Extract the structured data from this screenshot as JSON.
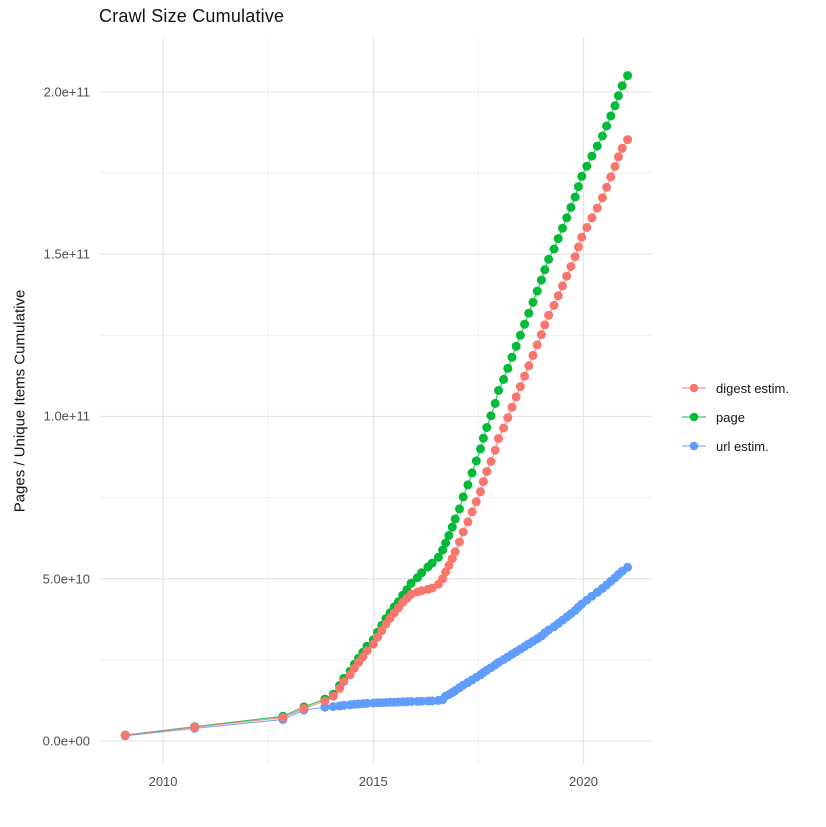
{
  "chart_data": {
    "type": "line",
    "title": "Crawl Size Cumulative",
    "xlabel": "",
    "ylabel": "Pages / Unique Items Cumulative",
    "value_unit": "1e9",
    "x_domain": [
      2008.5,
      2021.63
    ],
    "y_domain": [
      -7.1,
      216.6
    ],
    "grid": true,
    "legend_position": "right",
    "grid_major_color": "#e4e4e4",
    "grid_minor_color": "#efefef",
    "x_ticks": [
      {
        "value": 2010,
        "label": "2010"
      },
      {
        "value": 2015,
        "label": "2015"
      },
      {
        "value": 2020,
        "label": "2020"
      }
    ],
    "x_minor_ticks": [
      2012.5,
      2017.5
    ],
    "y_ticks": [
      {
        "value": 0,
        "label": "0.0e+00"
      },
      {
        "value": 50,
        "label": "5.0e+10"
      },
      {
        "value": 100,
        "label": "1.0e+11"
      },
      {
        "value": 150,
        "label": "1.5e+11"
      },
      {
        "value": 200,
        "label": "2.0e+11"
      }
    ],
    "y_minor_ticks": [
      25,
      75,
      125,
      175
    ],
    "series": [
      {
        "name": "digest estim.",
        "color": "#F8766D",
        "points": [
          [
            2009.1,
            1.7
          ],
          [
            2010.75,
            4.3
          ],
          [
            2012.85,
            7.2
          ],
          [
            2013.35,
            10.0
          ],
          [
            2013.85,
            12.3
          ],
          [
            2014.05,
            13.8
          ],
          [
            2014.2,
            16.2
          ],
          [
            2014.3,
            18.3
          ],
          [
            2014.45,
            20.4
          ],
          [
            2014.55,
            22.4
          ],
          [
            2014.65,
            24.2
          ],
          [
            2014.75,
            25.9
          ],
          [
            2014.85,
            27.8
          ],
          [
            2015.0,
            29.8
          ],
          [
            2015.1,
            32.0
          ],
          [
            2015.2,
            34.0
          ],
          [
            2015.3,
            36.0
          ],
          [
            2015.4,
            37.8
          ],
          [
            2015.5,
            39.5
          ],
          [
            2015.6,
            41.0
          ],
          [
            2015.7,
            42.7
          ],
          [
            2015.8,
            44.0
          ],
          [
            2015.9,
            45.2
          ],
          [
            2016.05,
            45.9
          ],
          [
            2016.15,
            46.3
          ],
          [
            2016.3,
            46.7
          ],
          [
            2016.4,
            47.1
          ],
          [
            2016.55,
            48.3
          ],
          [
            2016.65,
            50.0
          ],
          [
            2016.72,
            52.1
          ],
          [
            2016.8,
            54.1
          ],
          [
            2016.88,
            56.2
          ],
          [
            2016.95,
            58.3
          ],
          [
            2017.05,
            61.3
          ],
          [
            2017.14,
            64.4
          ],
          [
            2017.25,
            67.5
          ],
          [
            2017.35,
            70.6
          ],
          [
            2017.45,
            73.7
          ],
          [
            2017.55,
            76.8
          ],
          [
            2017.62,
            79.9
          ],
          [
            2017.7,
            83.0
          ],
          [
            2017.8,
            86.1
          ],
          [
            2017.9,
            89.6
          ],
          [
            2017.98,
            93.2
          ],
          [
            2018.1,
            96.4
          ],
          [
            2018.2,
            99.6
          ],
          [
            2018.3,
            102.8
          ],
          [
            2018.4,
            106.0
          ],
          [
            2018.5,
            109.2
          ],
          [
            2018.6,
            112.4
          ],
          [
            2018.7,
            115.6
          ],
          [
            2018.8,
            118.8
          ],
          [
            2018.9,
            122.0
          ],
          [
            2019.0,
            125.2
          ],
          [
            2019.08,
            128.2
          ],
          [
            2019.17,
            131.2
          ],
          [
            2019.3,
            134.2
          ],
          [
            2019.4,
            137.2
          ],
          [
            2019.5,
            140.2
          ],
          [
            2019.6,
            143.2
          ],
          [
            2019.7,
            146.2
          ],
          [
            2019.8,
            149.2
          ],
          [
            2019.88,
            152.2
          ],
          [
            2019.96,
            155.2
          ],
          [
            2020.08,
            158.2
          ],
          [
            2020.2,
            161.2
          ],
          [
            2020.33,
            164.2
          ],
          [
            2020.45,
            167.4
          ],
          [
            2020.55,
            170.6
          ],
          [
            2020.65,
            173.8
          ],
          [
            2020.75,
            177.0
          ],
          [
            2020.83,
            180.0
          ],
          [
            2020.92,
            182.6
          ],
          [
            2021.05,
            185.3
          ]
        ]
      },
      {
        "name": "page",
        "color": "#00BA38",
        "points": [
          [
            2009.1,
            1.8
          ],
          [
            2010.75,
            4.4
          ],
          [
            2012.85,
            7.6
          ],
          [
            2013.35,
            10.5
          ],
          [
            2013.85,
            12.9
          ],
          [
            2014.05,
            14.4
          ],
          [
            2014.2,
            17.1
          ],
          [
            2014.3,
            19.3
          ],
          [
            2014.45,
            21.5
          ],
          [
            2014.55,
            23.6
          ],
          [
            2014.65,
            25.5
          ],
          [
            2014.75,
            27.3
          ],
          [
            2014.85,
            29.2
          ],
          [
            2015.0,
            31.2
          ],
          [
            2015.1,
            33.5
          ],
          [
            2015.2,
            35.6
          ],
          [
            2015.3,
            37.7
          ],
          [
            2015.4,
            39.5
          ],
          [
            2015.5,
            41.3
          ],
          [
            2015.6,
            42.9
          ],
          [
            2015.7,
            44.9
          ],
          [
            2015.8,
            46.6
          ],
          [
            2015.9,
            48.6
          ],
          [
            2016.05,
            50.3
          ],
          [
            2016.15,
            51.8
          ],
          [
            2016.3,
            53.6
          ],
          [
            2016.4,
            54.8
          ],
          [
            2016.55,
            56.6
          ],
          [
            2016.65,
            58.8
          ],
          [
            2016.72,
            61.0
          ],
          [
            2016.8,
            63.3
          ],
          [
            2016.88,
            65.9
          ],
          [
            2016.95,
            68.4
          ],
          [
            2017.05,
            71.5
          ],
          [
            2017.14,
            75.2
          ],
          [
            2017.25,
            78.9
          ],
          [
            2017.35,
            82.6
          ],
          [
            2017.45,
            86.3
          ],
          [
            2017.55,
            90.0
          ],
          [
            2017.62,
            93.3
          ],
          [
            2017.7,
            96.6
          ],
          [
            2017.8,
            100.2
          ],
          [
            2017.9,
            104.0
          ],
          [
            2017.98,
            108.0
          ],
          [
            2018.1,
            111.4
          ],
          [
            2018.2,
            114.8
          ],
          [
            2018.3,
            118.2
          ],
          [
            2018.4,
            121.6
          ],
          [
            2018.5,
            125.0
          ],
          [
            2018.6,
            128.4
          ],
          [
            2018.7,
            131.8
          ],
          [
            2018.8,
            135.2
          ],
          [
            2018.9,
            138.6
          ],
          [
            2019.0,
            142.0
          ],
          [
            2019.08,
            145.2
          ],
          [
            2019.17,
            148.4
          ],
          [
            2019.3,
            151.6
          ],
          [
            2019.4,
            154.8
          ],
          [
            2019.5,
            158.0
          ],
          [
            2019.6,
            161.2
          ],
          [
            2019.7,
            164.4
          ],
          [
            2019.8,
            167.6
          ],
          [
            2019.88,
            170.8
          ],
          [
            2019.96,
            174.0
          ],
          [
            2020.08,
            177.1
          ],
          [
            2020.2,
            180.2
          ],
          [
            2020.33,
            183.3
          ],
          [
            2020.45,
            186.4
          ],
          [
            2020.55,
            189.5
          ],
          [
            2020.65,
            192.6
          ],
          [
            2020.75,
            195.7
          ],
          [
            2020.83,
            198.8
          ],
          [
            2020.92,
            201.9
          ],
          [
            2021.05,
            205.0
          ]
        ]
      },
      {
        "name": "url estim.",
        "color": "#619CFF",
        "points": [
          [
            2009.1,
            1.6
          ],
          [
            2010.75,
            3.9
          ],
          [
            2012.85,
            6.6
          ],
          [
            2013.35,
            9.5
          ],
          [
            2013.85,
            10.4
          ],
          [
            2014.05,
            10.6
          ],
          [
            2014.2,
            10.8
          ],
          [
            2014.3,
            11.0
          ],
          [
            2014.45,
            11.15
          ],
          [
            2014.55,
            11.3
          ],
          [
            2014.65,
            11.4
          ],
          [
            2014.75,
            11.5
          ],
          [
            2014.85,
            11.6
          ],
          [
            2015.0,
            11.7
          ],
          [
            2015.1,
            11.75
          ],
          [
            2015.2,
            11.8
          ],
          [
            2015.3,
            11.85
          ],
          [
            2015.4,
            11.9
          ],
          [
            2015.5,
            11.95
          ],
          [
            2015.6,
            12.0
          ],
          [
            2015.7,
            12.05
          ],
          [
            2015.8,
            12.1
          ],
          [
            2015.9,
            12.15
          ],
          [
            2016.05,
            12.2
          ],
          [
            2016.15,
            12.25
          ],
          [
            2016.3,
            12.3
          ],
          [
            2016.4,
            12.35
          ],
          [
            2016.55,
            12.5
          ],
          [
            2016.65,
            12.7
          ],
          [
            2016.72,
            13.8
          ],
          [
            2016.8,
            14.3
          ],
          [
            2016.88,
            14.9
          ],
          [
            2016.95,
            15.5
          ],
          [
            2017.05,
            16.4
          ],
          [
            2017.14,
            17.2
          ],
          [
            2017.25,
            18.0
          ],
          [
            2017.35,
            18.8
          ],
          [
            2017.45,
            19.6
          ],
          [
            2017.55,
            20.4
          ],
          [
            2017.62,
            21.1
          ],
          [
            2017.7,
            21.8
          ],
          [
            2017.8,
            22.6
          ],
          [
            2017.9,
            23.4
          ],
          [
            2017.98,
            24.2
          ],
          [
            2018.1,
            25.1
          ],
          [
            2018.2,
            25.9
          ],
          [
            2018.3,
            26.7
          ],
          [
            2018.4,
            27.5
          ],
          [
            2018.5,
            28.3
          ],
          [
            2018.6,
            29.1
          ],
          [
            2018.7,
            29.9
          ],
          [
            2018.8,
            30.7
          ],
          [
            2018.9,
            31.5
          ],
          [
            2019.0,
            32.3
          ],
          [
            2019.08,
            33.3
          ],
          [
            2019.17,
            34.2
          ],
          [
            2019.3,
            35.2
          ],
          [
            2019.4,
            36.2
          ],
          [
            2019.5,
            37.2
          ],
          [
            2019.6,
            38.2
          ],
          [
            2019.7,
            39.2
          ],
          [
            2019.8,
            40.2
          ],
          [
            2019.88,
            41.2
          ],
          [
            2019.96,
            42.2
          ],
          [
            2020.08,
            43.4
          ],
          [
            2020.2,
            44.6
          ],
          [
            2020.33,
            45.8
          ],
          [
            2020.45,
            47.0
          ],
          [
            2020.55,
            48.1
          ],
          [
            2020.65,
            49.2
          ],
          [
            2020.75,
            50.3
          ],
          [
            2020.83,
            51.3
          ],
          [
            2020.92,
            52.3
          ],
          [
            2021.05,
            53.5
          ]
        ]
      }
    ]
  }
}
